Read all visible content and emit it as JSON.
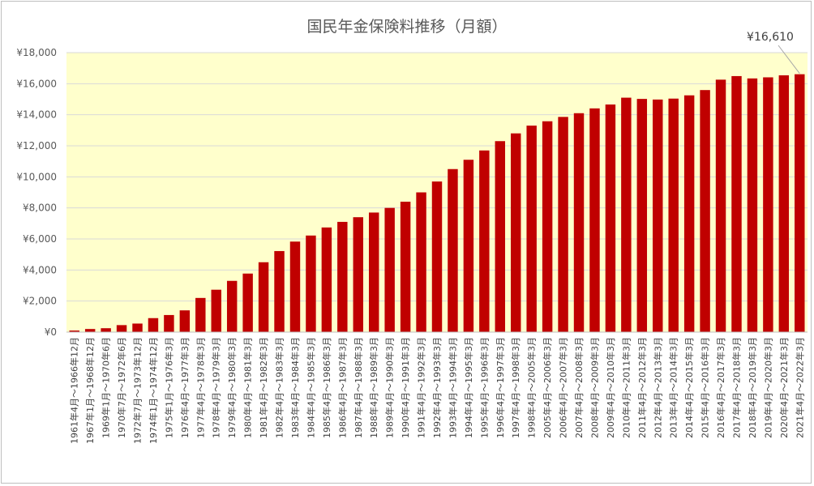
{
  "chart_data": {
    "type": "bar",
    "title": "国民年金保険料推移（月額）",
    "xlabel": "",
    "ylabel": "",
    "ylim": [
      0,
      18000
    ],
    "yticks": [
      0,
      2000,
      4000,
      6000,
      8000,
      10000,
      12000,
      14000,
      16000,
      18000
    ],
    "ytick_labels": [
      "¥0",
      "¥2,000",
      "¥4,000",
      "¥6,000",
      "¥8,000",
      "¥10,000",
      "¥12,000",
      "¥14,000",
      "¥16,000",
      "¥18,000"
    ],
    "grid": true,
    "legend": "none",
    "colors": {
      "bar": "#c00000",
      "plot_background": "#ffffcc",
      "gridline": "#d9d9d9"
    },
    "categories": [
      "1961年4月～1966年12月",
      "1967年1月～1968年12月",
      "1969年1月～1970年6月",
      "1970年7月～1972年6月",
      "1972年7月～1973年12月",
      "1974年1月～1974年12月",
      "1975年1月～1976年3月",
      "1976年4月～1977年3月",
      "1977年4月～1978年3月",
      "1978年4月～1979年3月",
      "1979年4月～1980年3月",
      "1980年4月～1981年3月",
      "1981年4月～1982年3月",
      "1982年4月～1983年3月",
      "1983年4月～1984年3月",
      "1984年4月～1985年3月",
      "1985年4月～1986年3月",
      "1986年4月～1987年3月",
      "1987年4月～1988年3月",
      "1988年4月～1989年3月",
      "1989年4月～1990年3月",
      "1990年4月～1991年3月",
      "1991年4月～1992年3月",
      "1992年4月～1993年3月",
      "1993年4月～1994年3月",
      "1994年4月～1995年3月",
      "1995年4月～1996年3月",
      "1996年4月～1997年3月",
      "1997年4月～1998年3月",
      "1998年4月～2005年3月",
      "2005年4月～2006年3月",
      "2006年4月～2007年3月",
      "2007年4月～2008年3月",
      "2008年4月～2009年3月",
      "2009年4月～2010年3月",
      "2010年4月～2011年3月",
      "2011年4月～2012年3月",
      "2012年4月～2013年3月",
      "2013年4月～2014年3月",
      "2014年4月～2015年3月",
      "2015年4月～2016年3月",
      "2016年4月～2017年3月",
      "2017年4月～2018年3月",
      "2018年4月～2019年3月",
      "2019年4月～2020年3月",
      "2020年4月～2021年3月",
      "2021年4月～2022年3月"
    ],
    "values": [
      100,
      200,
      250,
      450,
      550,
      900,
      1100,
      1400,
      2200,
      2730,
      3300,
      3770,
      4500,
      5220,
      5830,
      6220,
      6740,
      7100,
      7400,
      7700,
      8000,
      8400,
      9000,
      9700,
      10500,
      11100,
      11700,
      12300,
      12800,
      13300,
      13580,
      13860,
      14100,
      14410,
      14660,
      15100,
      15020,
      14980,
      15040,
      15250,
      15590,
      16260,
      16490,
      16340,
      16410,
      16540,
      16610
    ],
    "annotations": [
      {
        "text": "¥16,610",
        "category_index": 46
      }
    ]
  }
}
